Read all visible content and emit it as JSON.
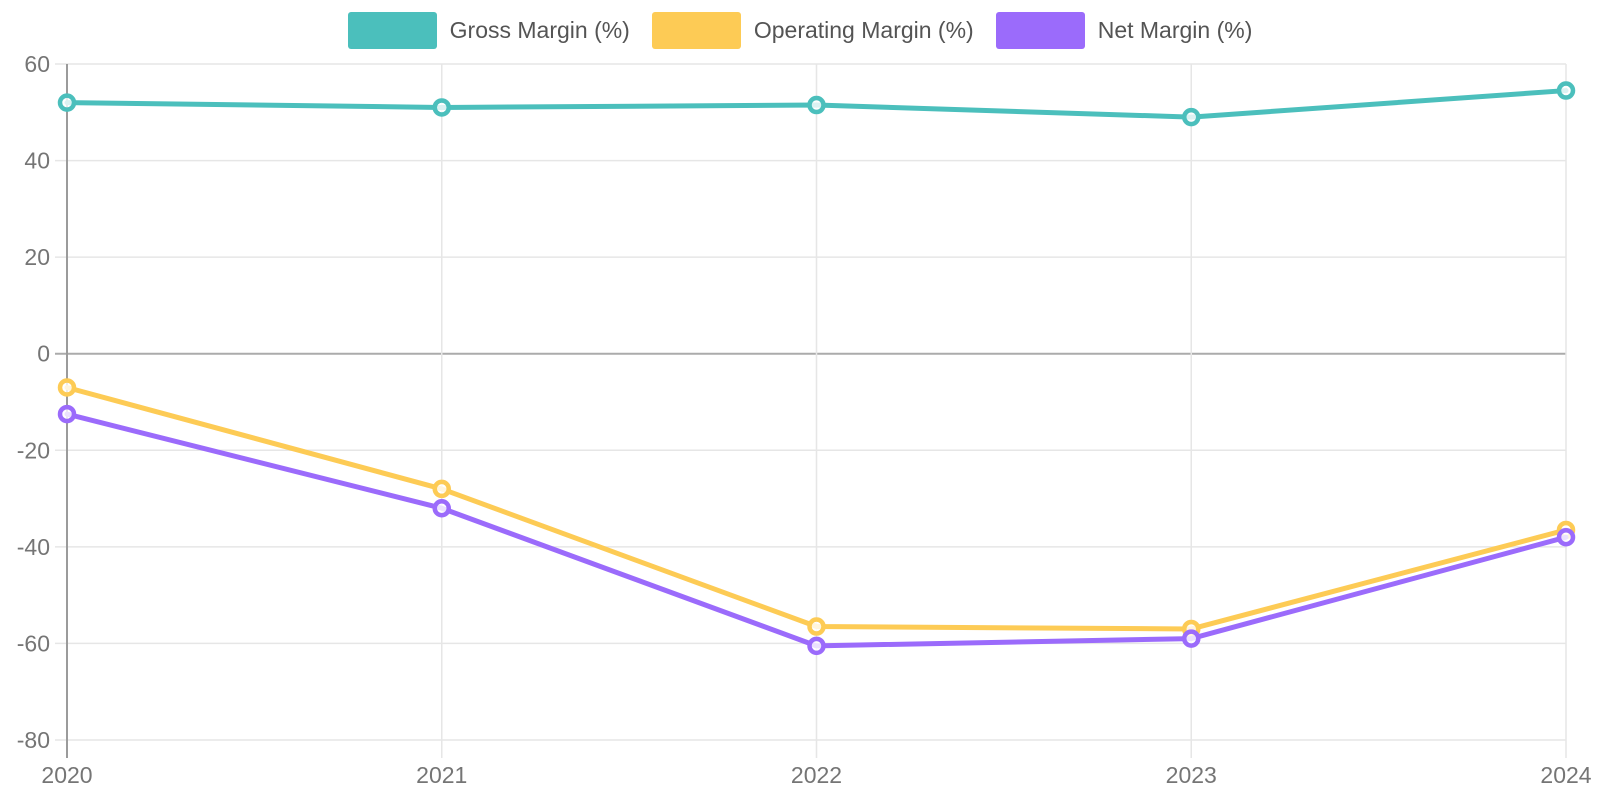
{
  "chart_data": {
    "type": "line",
    "categories": [
      "2020",
      "2021",
      "2022",
      "2023",
      "2024"
    ],
    "series": [
      {
        "name": "Gross Margin (%)",
        "color": "#4BBFBC",
        "values": [
          52,
          51,
          51.5,
          49,
          54.5
        ]
      },
      {
        "name": "Operating Margin (%)",
        "color": "#FDCB55",
        "values": [
          -7,
          -28,
          -56.5,
          -57,
          -36.5
        ]
      },
      {
        "name": "Net Margin (%)",
        "color": "#9B6BFB",
        "values": [
          -12.5,
          -32,
          -60.5,
          -59,
          -38
        ]
      }
    ],
    "title": "",
    "xlabel": "",
    "ylabel": "",
    "ylim": [
      -80,
      60
    ],
    "y_ticks": [
      60,
      40,
      20,
      0,
      -20,
      -40,
      -60,
      -80
    ],
    "grid": true,
    "legend_position": "top-center",
    "marker_style": "circle-open",
    "line_width": 5
  },
  "colors": {
    "background": "#ffffff",
    "gridline": "#e6e6e6",
    "zero_line": "#ababab",
    "axis_line": "#9b9b9b",
    "tick_text": "#757575",
    "legend_text": "#545454"
  }
}
